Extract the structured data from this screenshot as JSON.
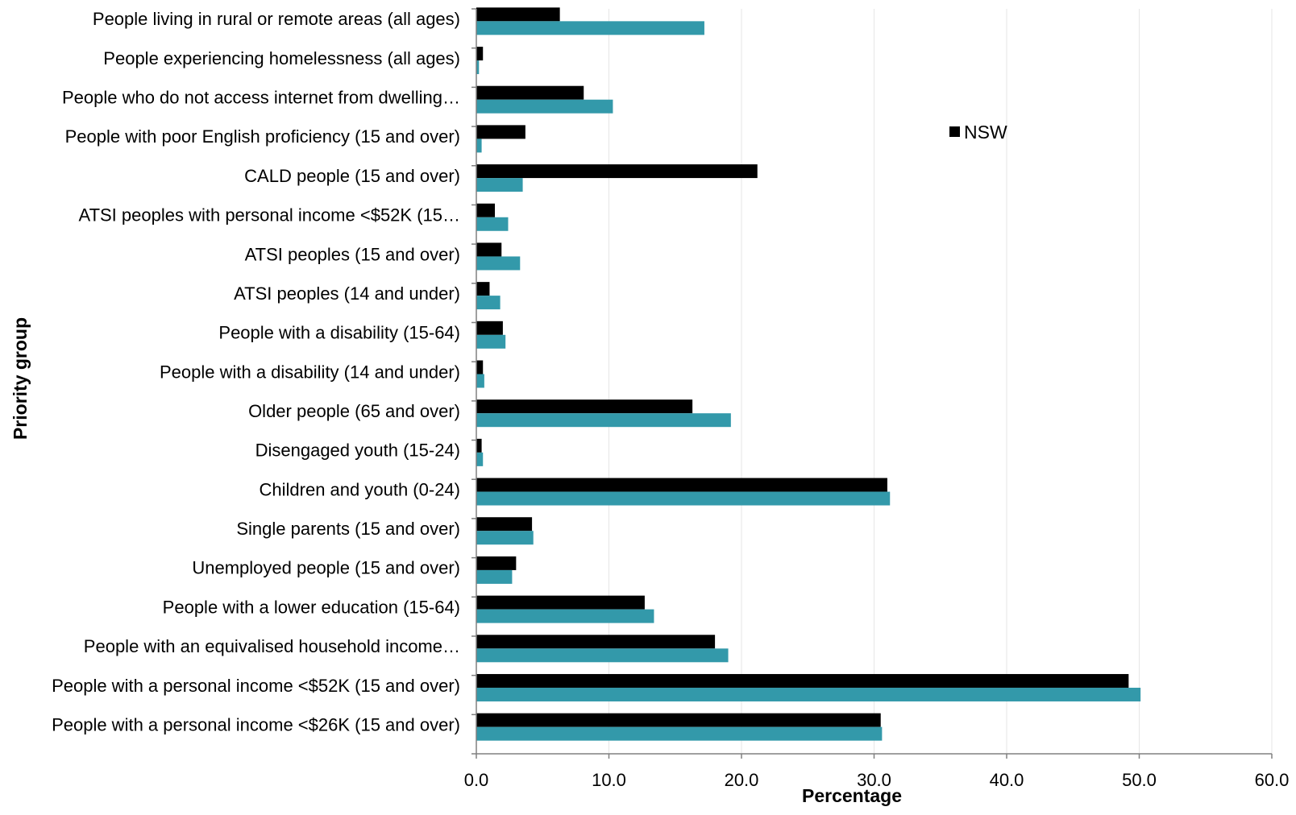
{
  "chart_data": {
    "type": "bar",
    "orientation": "horizontal",
    "categories": [
      "People living in rural or remote areas (all ages)",
      "People experiencing homelessness (all ages)",
      "People who do not access internet from dwelling…",
      "People with poor English proficiency (15 and over)",
      "CALD people (15 and over)",
      "ATSI peoples with personal income <$52K (15…",
      "ATSI peoples (15 and over)",
      "ATSI peoples (14 and under)",
      "People with a disability (15-64)",
      "People with a disability (14 and under)",
      "Older people (65 and over)",
      "Disengaged youth (15-24)",
      "Children and youth (0-24)",
      "Single parents (15 and over)",
      "Unemployed people (15 and over)",
      "People with a lower education (15-64)",
      "People with an equivalised household income…",
      "People with a personal income <$52K (15 and over)",
      "People with a personal income <$26K (15 and over)"
    ],
    "series": [
      {
        "name": "NSW",
        "color": "#000000",
        "values": [
          6.3,
          0.5,
          8.1,
          3.7,
          21.2,
          1.4,
          1.9,
          1.0,
          2.0,
          0.5,
          16.3,
          0.4,
          31.0,
          4.2,
          3.0,
          12.7,
          18.0,
          49.2,
          30.5
        ]
      },
      {
        "color": "#3399aa",
        "values": [
          17.2,
          0.2,
          10.3,
          0.4,
          3.5,
          2.4,
          3.3,
          1.8,
          2.2,
          0.6,
          19.2,
          0.5,
          31.2,
          4.3,
          2.7,
          13.4,
          19.0,
          50.1,
          30.6
        ]
      }
    ],
    "xlabel": "Percentage",
    "ylabel": "Priority group",
    "xlim": [
      0,
      60
    ],
    "xticks": [
      "0.0",
      "10.0",
      "20.0",
      "30.0",
      "40.0",
      "50.0",
      "60.0"
    ],
    "grid": "vertical",
    "legend": {
      "placement": "top-right",
      "entries": [
        "NSW"
      ]
    }
  }
}
